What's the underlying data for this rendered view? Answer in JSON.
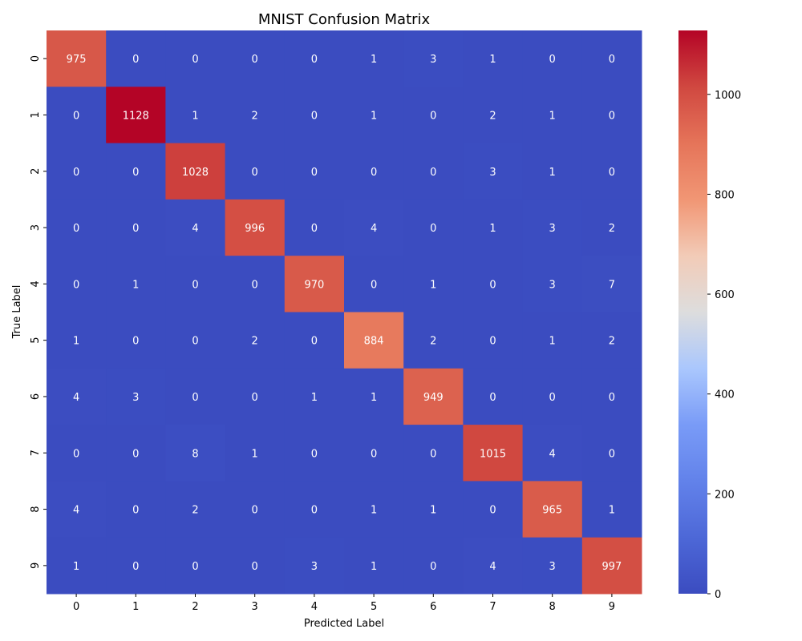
{
  "chart_data": {
    "type": "heatmap",
    "title": "MNIST Confusion Matrix",
    "xlabel": "Predicted Label",
    "ylabel": "True Label",
    "x_categories": [
      "0",
      "1",
      "2",
      "3",
      "4",
      "5",
      "6",
      "7",
      "8",
      "9"
    ],
    "y_categories": [
      "0",
      "1",
      "2",
      "3",
      "4",
      "5",
      "6",
      "7",
      "8",
      "9"
    ],
    "values": [
      [
        975,
        0,
        0,
        0,
        0,
        1,
        3,
        1,
        0,
        0
      ],
      [
        0,
        1128,
        1,
        2,
        0,
        1,
        0,
        2,
        1,
        0
      ],
      [
        0,
        0,
        1028,
        0,
        0,
        0,
        0,
        3,
        1,
        0
      ],
      [
        0,
        0,
        4,
        996,
        0,
        4,
        0,
        1,
        3,
        2
      ],
      [
        0,
        1,
        0,
        0,
        970,
        0,
        1,
        0,
        3,
        7
      ],
      [
        1,
        0,
        0,
        2,
        0,
        884,
        2,
        0,
        1,
        2
      ],
      [
        4,
        3,
        0,
        0,
        1,
        1,
        949,
        0,
        0,
        0
      ],
      [
        0,
        0,
        8,
        1,
        0,
        0,
        0,
        1015,
        4,
        0
      ],
      [
        4,
        0,
        2,
        0,
        0,
        1,
        1,
        0,
        965,
        1
      ],
      [
        1,
        0,
        0,
        0,
        3,
        1,
        0,
        4,
        3,
        997
      ]
    ],
    "colormap": "coolwarm",
    "value_range": [
      0,
      1128
    ],
    "colorbar_ticks": [
      "0",
      "200",
      "400",
      "600",
      "800",
      "1000"
    ],
    "colorbar_tick_values": [
      0,
      200,
      400,
      600,
      800,
      1000
    ],
    "annotations": true,
    "grid": false
  }
}
